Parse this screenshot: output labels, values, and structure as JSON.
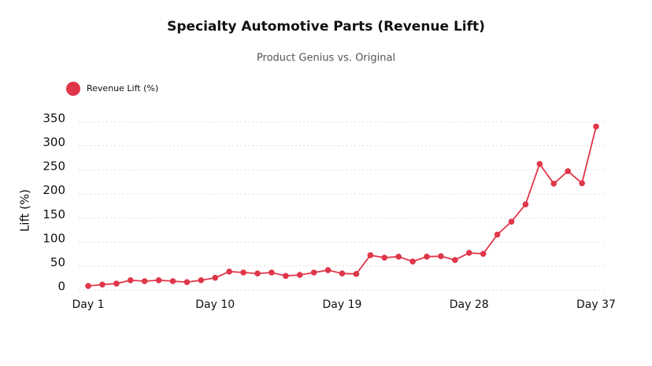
{
  "chart_data": {
    "type": "line",
    "title": "Specialty Automotive Parts (Revenue Lift)",
    "subtitle": "Product Genius vs. Original",
    "y_label": "Lift (%)",
    "categories": [
      "Day 1",
      null,
      null,
      null,
      null,
      null,
      null,
      null,
      null,
      "Day 10",
      null,
      null,
      null,
      null,
      null,
      null,
      null,
      null,
      "Day 19",
      null,
      null,
      null,
      null,
      null,
      null,
      null,
      null,
      "Day 28",
      null,
      null,
      null,
      null,
      null,
      null,
      null,
      null,
      "Day 37"
    ],
    "series": [
      {
        "name": "Revenue Lift (%)",
        "color": "#e0364a",
        "values": [
          8,
          11,
          13,
          20,
          18,
          20,
          18,
          16,
          20,
          25,
          38,
          36,
          34,
          36,
          29,
          31,
          36,
          41,
          34,
          33,
          72,
          67,
          69,
          59,
          69,
          70,
          62,
          77,
          75,
          115,
          142,
          178,
          262,
          221,
          247,
          222,
          340
        ]
      }
    ],
    "ylim": [
      0,
      350
    ],
    "yticks": [
      0,
      50,
      100,
      150,
      200,
      250,
      300,
      350
    ],
    "grid": true,
    "legend": "top-left"
  }
}
